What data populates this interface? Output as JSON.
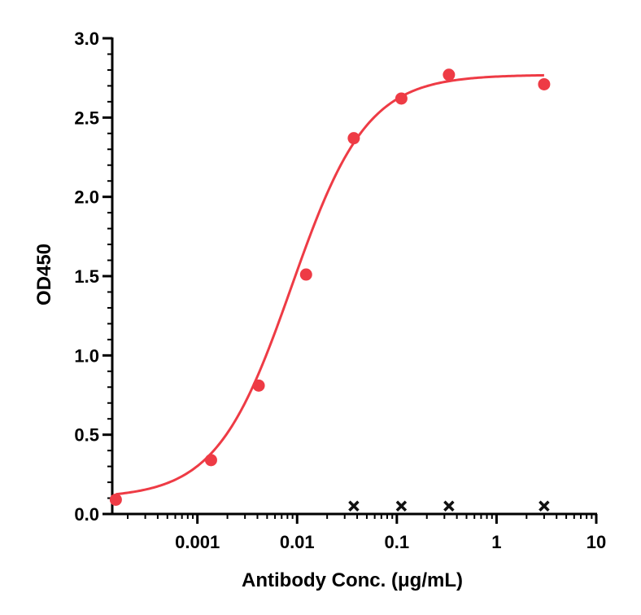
{
  "chart_data": {
    "type": "scatter",
    "xlabel": "Antibody Conc. (μg/mL)",
    "ylabel": "OD450",
    "x_scale": "log",
    "xlim": [
      0.00014,
      10
    ],
    "ylim": [
      0,
      3.0
    ],
    "x_ticks": [
      {
        "value": 0.001,
        "label": "0.001"
      },
      {
        "value": 0.01,
        "label": "0.01"
      },
      {
        "value": 0.1,
        "label": "0.1"
      },
      {
        "value": 1,
        "label": "1"
      },
      {
        "value": 10,
        "label": "10"
      }
    ],
    "y_ticks": [
      {
        "value": 0.0,
        "label": "0.0"
      },
      {
        "value": 0.5,
        "label": "0.5"
      },
      {
        "value": 1.0,
        "label": "1.0"
      },
      {
        "value": 1.5,
        "label": "1.5"
      },
      {
        "value": 2.0,
        "label": "2.0"
      },
      {
        "value": 2.5,
        "label": "2.5"
      },
      {
        "value": 3.0,
        "label": "3.0"
      }
    ],
    "grid": false,
    "series": [
      {
        "marker": "circle",
        "color": "#ee3b45",
        "points": [
          {
            "x": 0.000152,
            "y": 0.09
          },
          {
            "x": 0.00137,
            "y": 0.34
          },
          {
            "x": 0.00412,
            "y": 0.81
          },
          {
            "x": 0.0123,
            "y": 1.51
          },
          {
            "x": 0.037,
            "y": 2.37
          },
          {
            "x": 0.111,
            "y": 2.62
          },
          {
            "x": 0.333,
            "y": 2.77
          },
          {
            "x": 3.0,
            "y": 2.71
          }
        ],
        "fit_curve": {
          "model": "4PL",
          "bottom": 0.1,
          "top": 2.77,
          "ec50": 0.0088,
          "hill": 1.15
        }
      },
      {
        "marker": "x",
        "color": "#111111",
        "points": [
          {
            "x": 0.037,
            "y": 0.05
          },
          {
            "x": 0.111,
            "y": 0.05
          },
          {
            "x": 0.333,
            "y": 0.05
          },
          {
            "x": 3.0,
            "y": 0.05
          }
        ]
      }
    ]
  }
}
